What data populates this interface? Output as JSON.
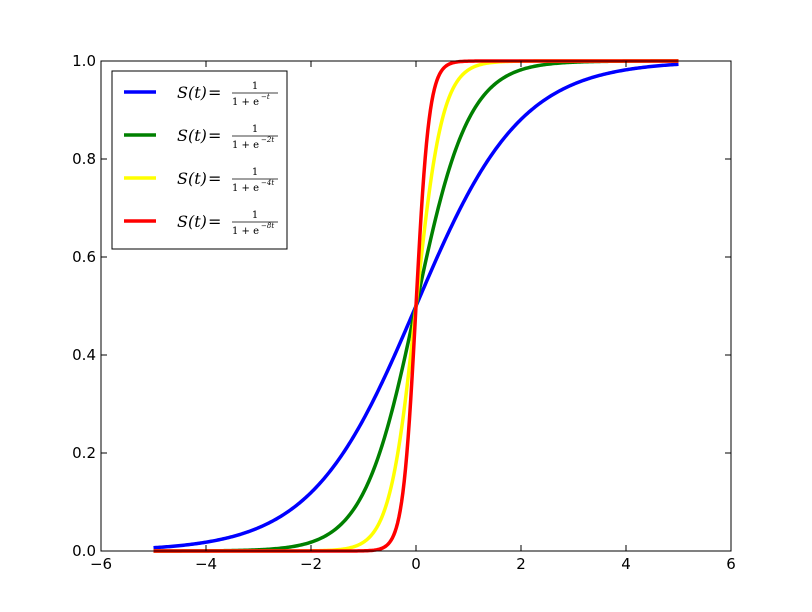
{
  "chart_data": {
    "type": "line",
    "title": "",
    "xlabel": "",
    "ylabel": "",
    "xlim": [
      -6,
      6
    ],
    "ylim": [
      0.0,
      1.0
    ],
    "x_range": [
      -5,
      5
    ],
    "x_ticks": [
      -6,
      -4,
      -2,
      0,
      2,
      4,
      6
    ],
    "x_tick_labels": [
      "−6",
      "−4",
      "−2",
      "0",
      "2",
      "4",
      "6"
    ],
    "y_ticks": [
      0.0,
      0.2,
      0.4,
      0.6,
      0.8,
      1.0
    ],
    "y_tick_labels": [
      "0.0",
      "0.2",
      "0.4",
      "0.6",
      "0.8",
      "1.0"
    ],
    "grid": false,
    "legend_position": "upper-left",
    "series": [
      {
        "name": "S(t) = 1/(1+e^-t)",
        "lhs": "S(t)",
        "num": "1",
        "den": "1 + e",
        "exp": "−t",
        "k": 1,
        "color": "#0000ff"
      },
      {
        "name": "S(t) = 1/(1+e^-2t)",
        "lhs": "S(t)",
        "num": "1",
        "den": "1 + e",
        "exp": "−2t",
        "k": 2,
        "color": "#008000"
      },
      {
        "name": "S(t) = 1/(1+e^-4t)",
        "lhs": "S(t)",
        "num": "1",
        "den": "1 + e",
        "exp": "−4t",
        "k": 4,
        "color": "#ffff00"
      },
      {
        "name": "S(t) = 1/(1+e^-8t)",
        "lhs": "S(t)",
        "num": "1",
        "den": "1 + e",
        "exp": "−8t",
        "k": 8,
        "color": "#ff0000"
      }
    ]
  }
}
